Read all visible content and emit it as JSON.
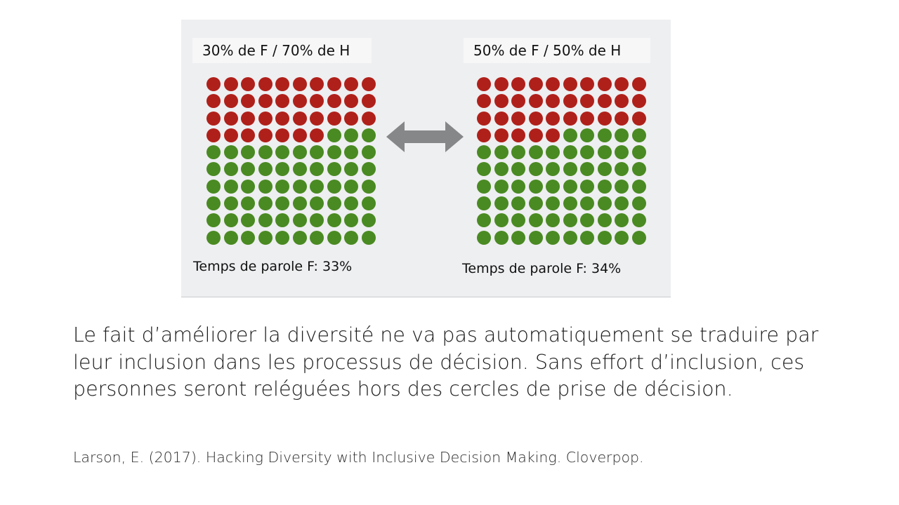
{
  "figure": {
    "left_panel": {
      "title": "30% de F / 70% de H",
      "caption": "Temps de parole F: 33%",
      "red_count": 37,
      "green_count": 63
    },
    "right_panel": {
      "title": "50% de F / 50% de H",
      "caption": "Temps de parole F: 34%",
      "red_count": 35,
      "green_count": 65
    },
    "colors": {
      "red": "#b0201a",
      "green": "#4a8a22",
      "arrow": "#858789"
    },
    "icons": {
      "arrow": "double-headed-arrow-icon"
    }
  },
  "body_text": "Le fait d’améliorer la diversité ne va pas automatiquement se traduire par leur inclusion dans les processus de décision. Sans effort d’inclusion, ces personnes seront reléguées hors des cercles de prise de décision.",
  "citation": "Larson, E. (2017). Hacking Diversity with Inclusive Decision Making. Cloverpop."
}
